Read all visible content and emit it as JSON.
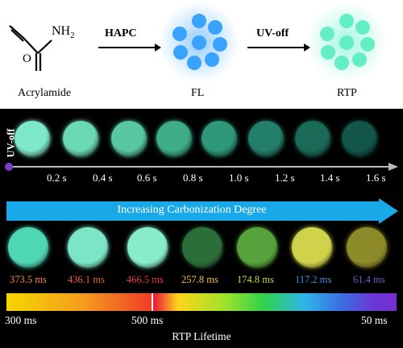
{
  "reaction": {
    "reactant_label": "Acrylamide",
    "amine_group": "NH",
    "amine_subscript": "2",
    "step1_label": "HAPC",
    "step2_label": "UV-off",
    "product1_label": "FL",
    "product2_label": "RTP"
  },
  "decay": {
    "start_label": "UV-off",
    "times": [
      "0.2 s",
      "0.4 s",
      "0.6 s",
      "0.8 s",
      "1.0 s",
      "1.2 s",
      "1.4 s",
      "1.6 s"
    ],
    "disc_colors": [
      "#7fe8c9",
      "#6bd9b4",
      "#58c7a2",
      "#3fad8a",
      "#2f977a",
      "#237f69",
      "#1b6a58",
      "#12564a"
    ]
  },
  "carbonization": {
    "banner_label": "Increasing Carbonization Degree",
    "samples": [
      {
        "lifetime": "373.5",
        "unit": "ms",
        "color": "#f08a3c",
        "disc": "#4fd6b4"
      },
      {
        "lifetime": "436.1",
        "unit": "ms",
        "color": "#ef5a33",
        "disc": "#7be5c6"
      },
      {
        "lifetime": "466.5",
        "unit": "ms",
        "color": "#ee3b35",
        "disc": "#86ecc9"
      },
      {
        "lifetime": "257.8",
        "unit": "ms",
        "color": "#f5c33a",
        "disc": "#2c6e3a"
      },
      {
        "lifetime": "174.8",
        "unit": "ms",
        "color": "#c5dc3b",
        "disc": "#56a23c"
      },
      {
        "lifetime": "117.2",
        "unit": "ms",
        "color": "#3f8ede",
        "disc": "#cfd24a"
      },
      {
        "lifetime": "61.4",
        "unit": "ms",
        "color": "#7c4fd2",
        "disc": "#8d8a2a"
      }
    ]
  },
  "scale": {
    "left_label": "300  ms",
    "mid_label": "500 ms",
    "right_label": "50  ms",
    "title": "RTP Lifetime"
  },
  "colors": {
    "fl_blue": "#3fa6ff",
    "rtp_green": "#5ff0c6",
    "banner": "#1aa9e8",
    "axis": "#bbbbbb"
  }
}
